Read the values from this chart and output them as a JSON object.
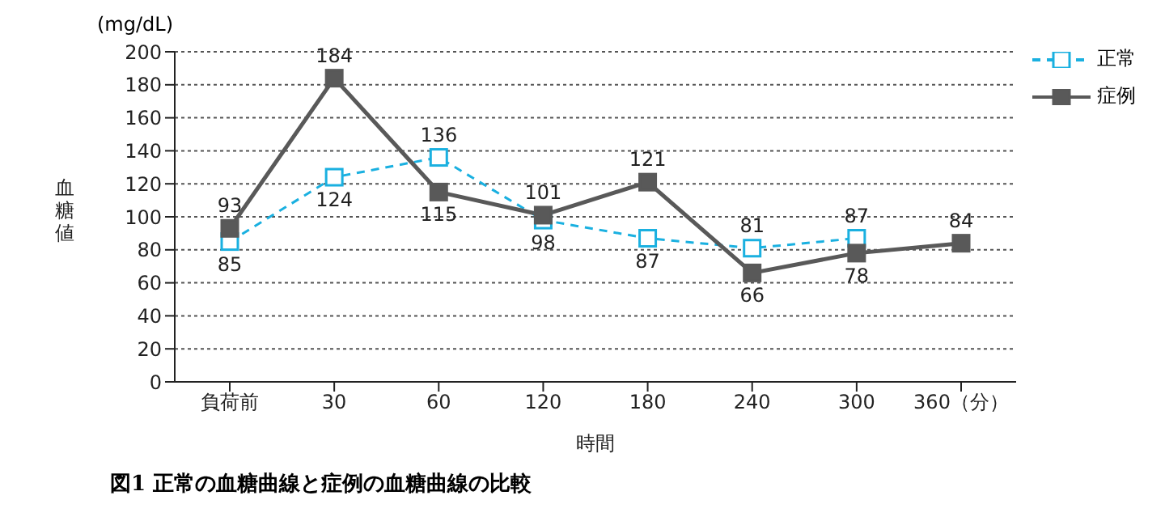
{
  "chart_data": {
    "type": "line",
    "title": "図1 正常の血糖曲線と症例の血糖曲線の比較",
    "xlabel": "時間",
    "ylabel": "血糖値",
    "annotations": [
      "(mg/dL)"
    ],
    "categories": [
      "負荷前",
      "30",
      "60",
      "120",
      "180",
      "240",
      "300",
      "360（分）"
    ],
    "series": [
      {
        "name": "正常",
        "color": "#1ab0e0",
        "line_style": "dashed",
        "values": [
          85,
          124,
          136,
          98,
          87,
          81,
          87,
          null
        ]
      },
      {
        "name": "症例",
        "color": "#595959",
        "line_style": "solid",
        "values": [
          93,
          184,
          115,
          101,
          121,
          66,
          78,
          84
        ]
      }
    ],
    "ylim": [
      0,
      200
    ],
    "yticks": [
      0,
      20,
      40,
      60,
      80,
      100,
      120,
      140,
      160,
      180,
      200
    ],
    "grid": "y",
    "legend": "top right",
    "marker": "square",
    "data_labels": true
  }
}
